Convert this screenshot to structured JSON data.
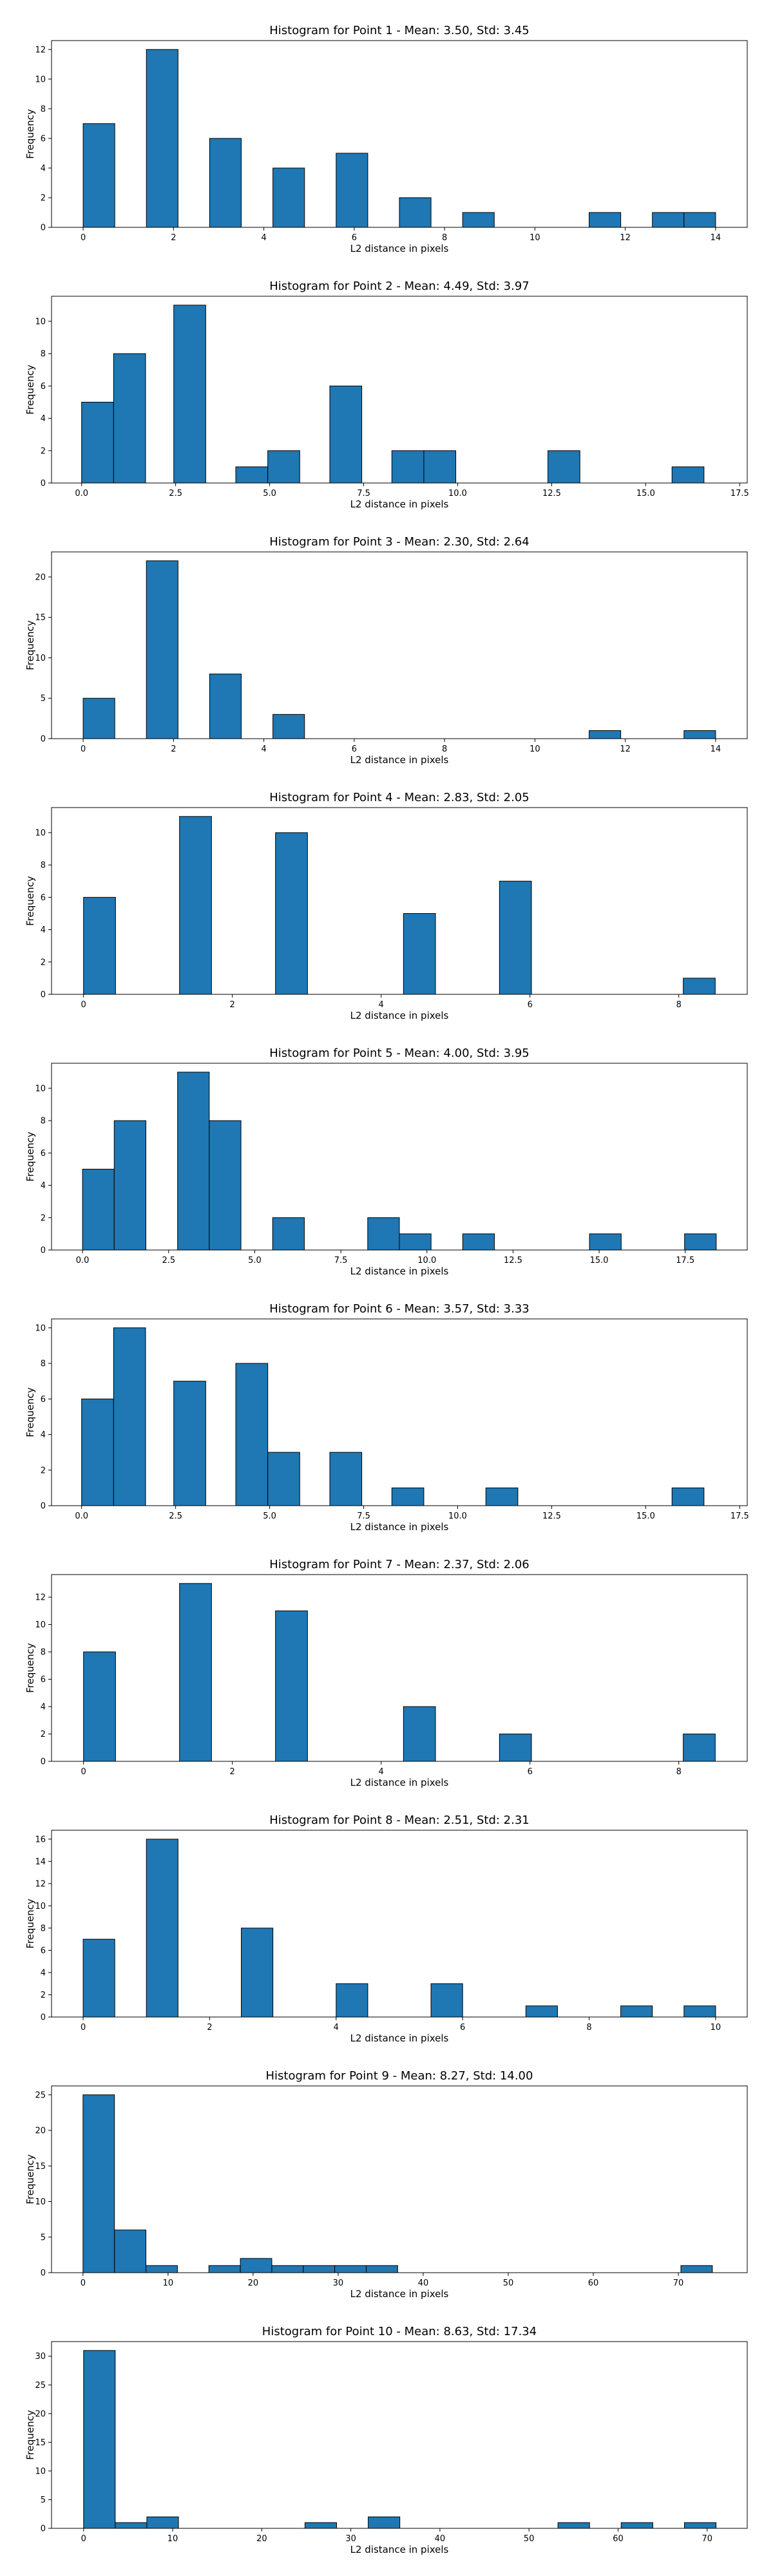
{
  "figure": {
    "bar_color": "#1f77b4",
    "edge_color": "#000000",
    "background": "#ffffff"
  },
  "chart_data": [
    {
      "type": "bar",
      "title": "Histogram for Point 1 - Mean: 3.50, Std: 3.45",
      "xlabel": "L2 distance in pixels",
      "ylabel": "Frequency",
      "xlim": [
        -0.7,
        14.7
      ],
      "ylim": [
        0,
        12.6
      ],
      "xticks": [
        0,
        2,
        4,
        6,
        8,
        10,
        12,
        14
      ],
      "yticks": [
        0,
        2,
        4,
        6,
        8,
        10,
        12
      ],
      "grid": false,
      "bins": [
        {
          "x0": 0.0,
          "x1": 0.7,
          "count": 7
        },
        {
          "x0": 1.4,
          "x1": 2.1,
          "count": 12
        },
        {
          "x0": 2.8,
          "x1": 3.5,
          "count": 6
        },
        {
          "x0": 4.2,
          "x1": 4.9,
          "count": 4
        },
        {
          "x0": 5.6,
          "x1": 6.3,
          "count": 5
        },
        {
          "x0": 7.0,
          "x1": 7.7,
          "count": 2
        },
        {
          "x0": 8.4,
          "x1": 9.1,
          "count": 1
        },
        {
          "x0": 11.2,
          "x1": 11.9,
          "count": 1
        },
        {
          "x0": 12.6,
          "x1": 13.3,
          "count": 1
        },
        {
          "x0": 13.3,
          "x1": 14.0,
          "count": 1
        }
      ]
    },
    {
      "type": "bar",
      "title": "Histogram for Point 2 - Mean: 4.49, Std: 3.97",
      "xlabel": "L2 distance in pixels",
      "ylabel": "Frequency",
      "xlim": [
        -0.8,
        17.7
      ],
      "ylim": [
        0,
        11.55
      ],
      "xticks": [
        "0.0",
        "2.5",
        "5.0",
        "7.5",
        "10.0",
        "12.5",
        "15.0",
        "17.5"
      ],
      "yticks": [
        0,
        2,
        4,
        6,
        8,
        10
      ],
      "grid": false,
      "bins": [
        {
          "x0": 0.0,
          "x1": 0.85,
          "count": 5
        },
        {
          "x0": 0.85,
          "x1": 1.7,
          "count": 8
        },
        {
          "x0": 2.45,
          "x1": 3.3,
          "count": 11
        },
        {
          "x0": 4.1,
          "x1": 4.95,
          "count": 1
        },
        {
          "x0": 4.95,
          "x1": 5.8,
          "count": 2
        },
        {
          "x0": 6.6,
          "x1": 7.45,
          "count": 6
        },
        {
          "x0": 8.25,
          "x1": 9.1,
          "count": 2
        },
        {
          "x0": 9.1,
          "x1": 9.95,
          "count": 2
        },
        {
          "x0": 12.4,
          "x1": 13.25,
          "count": 2
        },
        {
          "x0": 15.7,
          "x1": 16.55,
          "count": 1
        }
      ]
    },
    {
      "type": "bar",
      "title": "Histogram for Point 3 - Mean: 2.30, Std: 2.64",
      "xlabel": "L2 distance in pixels",
      "ylabel": "Frequency",
      "xlim": [
        -0.7,
        14.7
      ],
      "ylim": [
        0,
        23.1
      ],
      "xticks": [
        0,
        2,
        4,
        6,
        8,
        10,
        12,
        14
      ],
      "yticks": [
        0,
        5,
        10,
        15,
        20
      ],
      "grid": false,
      "bins": [
        {
          "x0": 0.0,
          "x1": 0.7,
          "count": 5
        },
        {
          "x0": 1.4,
          "x1": 2.1,
          "count": 22
        },
        {
          "x0": 2.8,
          "x1": 3.5,
          "count": 8
        },
        {
          "x0": 4.2,
          "x1": 4.9,
          "count": 3
        },
        {
          "x0": 11.2,
          "x1": 11.9,
          "count": 1
        },
        {
          "x0": 13.3,
          "x1": 14.0,
          "count": 1
        }
      ]
    },
    {
      "type": "bar",
      "title": "Histogram for Point 4 - Mean: 2.83, Std: 2.05",
      "xlabel": "L2 distance in pixels",
      "ylabel": "Frequency",
      "xlim": [
        -0.43,
        8.92
      ],
      "ylim": [
        0,
        11.55
      ],
      "xticks": [
        0,
        2,
        4,
        6,
        8
      ],
      "yticks": [
        0,
        2,
        4,
        6,
        8,
        10
      ],
      "grid": false,
      "bins": [
        {
          "x0": 0.0,
          "x1": 0.43,
          "count": 6
        },
        {
          "x0": 1.29,
          "x1": 1.72,
          "count": 11
        },
        {
          "x0": 2.58,
          "x1": 3.01,
          "count": 10
        },
        {
          "x0": 4.3,
          "x1": 4.73,
          "count": 5
        },
        {
          "x0": 5.59,
          "x1": 6.02,
          "count": 7
        },
        {
          "x0": 8.06,
          "x1": 8.49,
          "count": 1
        }
      ]
    },
    {
      "type": "bar",
      "title": "Histogram for Point 5 - Mean: 4.00, Std: 3.95",
      "xlabel": "L2 distance in pixels",
      "ylabel": "Frequency",
      "xlim": [
        -0.9,
        19.3
      ],
      "ylim": [
        0,
        11.55
      ],
      "xticks": [
        "0.0",
        "2.5",
        "5.0",
        "7.5",
        "10.0",
        "12.5",
        "15.0",
        "17.5"
      ],
      "yticks": [
        0,
        2,
        4,
        6,
        8,
        10
      ],
      "grid": false,
      "bins": [
        {
          "x0": 0.0,
          "x1": 0.92,
          "count": 5
        },
        {
          "x0": 0.92,
          "x1": 1.84,
          "count": 8
        },
        {
          "x0": 2.76,
          "x1": 3.68,
          "count": 11
        },
        {
          "x0": 3.68,
          "x1": 4.6,
          "count": 8
        },
        {
          "x0": 5.52,
          "x1": 6.44,
          "count": 2
        },
        {
          "x0": 8.28,
          "x1": 9.2,
          "count": 2
        },
        {
          "x0": 9.2,
          "x1": 10.12,
          "count": 1
        },
        {
          "x0": 11.04,
          "x1": 11.96,
          "count": 1
        },
        {
          "x0": 14.72,
          "x1": 15.64,
          "count": 1
        },
        {
          "x0": 17.48,
          "x1": 18.4,
          "count": 1
        }
      ]
    },
    {
      "type": "bar",
      "title": "Histogram for Point 6 - Mean: 3.57, Std: 3.33",
      "xlabel": "L2 distance in pixels",
      "ylabel": "Frequency",
      "xlim": [
        -0.8,
        17.7
      ],
      "ylim": [
        0,
        10.5
      ],
      "xticks": [
        "0.0",
        "2.5",
        "5.0",
        "7.5",
        "10.0",
        "12.5",
        "15.0",
        "17.5"
      ],
      "yticks": [
        0,
        2,
        4,
        6,
        8,
        10
      ],
      "grid": false,
      "bins": [
        {
          "x0": 0.0,
          "x1": 0.85,
          "count": 6
        },
        {
          "x0": 0.85,
          "x1": 1.7,
          "count": 10
        },
        {
          "x0": 2.45,
          "x1": 3.3,
          "count": 7
        },
        {
          "x0": 4.1,
          "x1": 4.95,
          "count": 8
        },
        {
          "x0": 4.95,
          "x1": 5.8,
          "count": 3
        },
        {
          "x0": 6.6,
          "x1": 7.45,
          "count": 3
        },
        {
          "x0": 8.25,
          "x1": 9.1,
          "count": 1
        },
        {
          "x0": 10.75,
          "x1": 11.6,
          "count": 1
        },
        {
          "x0": 15.7,
          "x1": 16.55,
          "count": 1
        }
      ]
    },
    {
      "type": "bar",
      "title": "Histogram for Point 7 - Mean: 2.37, Std: 2.06",
      "xlabel": "L2 distance in pixels",
      "ylabel": "Frequency",
      "xlim": [
        -0.43,
        8.92
      ],
      "ylim": [
        0,
        13.65
      ],
      "xticks": [
        0,
        2,
        4,
        6,
        8
      ],
      "yticks": [
        0,
        2,
        4,
        6,
        8,
        10,
        12
      ],
      "grid": false,
      "bins": [
        {
          "x0": 0.0,
          "x1": 0.43,
          "count": 8
        },
        {
          "x0": 1.29,
          "x1": 1.72,
          "count": 13
        },
        {
          "x0": 2.58,
          "x1": 3.01,
          "count": 11
        },
        {
          "x0": 4.3,
          "x1": 4.73,
          "count": 4
        },
        {
          "x0": 5.59,
          "x1": 6.02,
          "count": 2
        },
        {
          "x0": 8.06,
          "x1": 8.49,
          "count": 2
        }
      ]
    },
    {
      "type": "bar",
      "title": "Histogram for Point 8 - Mean: 2.51, Std: 2.31",
      "xlabel": "L2 distance in pixels",
      "ylabel": "Frequency",
      "xlim": [
        -0.5,
        10.5
      ],
      "ylim": [
        0,
        16.8
      ],
      "xticks": [
        0,
        2,
        4,
        6,
        8,
        10
      ],
      "yticks": [
        0,
        2,
        4,
        6,
        8,
        10,
        12,
        14,
        16
      ],
      "grid": false,
      "bins": [
        {
          "x0": 0.0,
          "x1": 0.5,
          "count": 7
        },
        {
          "x0": 1.0,
          "x1": 1.5,
          "count": 16
        },
        {
          "x0": 2.5,
          "x1": 3.0,
          "count": 8
        },
        {
          "x0": 4.0,
          "x1": 4.5,
          "count": 3
        },
        {
          "x0": 5.5,
          "x1": 6.0,
          "count": 3
        },
        {
          "x0": 7.0,
          "x1": 7.5,
          "count": 1
        },
        {
          "x0": 8.5,
          "x1": 9.0,
          "count": 1
        },
        {
          "x0": 9.5,
          "x1": 10.0,
          "count": 1
        }
      ]
    },
    {
      "type": "bar",
      "title": "Histogram for Point 9 - Mean: 8.27, Std: 14.00",
      "xlabel": "L2 distance in pixels",
      "ylabel": "Frequency",
      "xlim": [
        -3.7,
        78.1
      ],
      "ylim": [
        0,
        26.25
      ],
      "xticks": [
        0,
        10,
        20,
        30,
        40,
        50,
        60,
        70
      ],
      "yticks": [
        0,
        5,
        10,
        15,
        20,
        25
      ],
      "grid": false,
      "bins": [
        {
          "x0": 0.0,
          "x1": 3.7,
          "count": 25
        },
        {
          "x0": 3.7,
          "x1": 7.4,
          "count": 6
        },
        {
          "x0": 7.4,
          "x1": 11.1,
          "count": 1
        },
        {
          "x0": 14.8,
          "x1": 18.5,
          "count": 1
        },
        {
          "x0": 18.5,
          "x1": 22.2,
          "count": 2
        },
        {
          "x0": 22.2,
          "x1": 25.9,
          "count": 1
        },
        {
          "x0": 25.9,
          "x1": 29.6,
          "count": 1
        },
        {
          "x0": 29.6,
          "x1": 33.3,
          "count": 1
        },
        {
          "x0": 33.3,
          "x1": 37.0,
          "count": 1
        },
        {
          "x0": 70.3,
          "x1": 74.0,
          "count": 1
        }
      ]
    },
    {
      "type": "bar",
      "title": "Histogram for Point 10 - Mean: 8.63, Std: 17.34",
      "xlabel": "L2 distance in pixels",
      "ylabel": "Frequency",
      "xlim": [
        -3.6,
        74.5
      ],
      "ylim": [
        0,
        32.55
      ],
      "xticks": [
        0,
        10,
        20,
        30,
        40,
        50,
        60,
        70
      ],
      "yticks": [
        0,
        5,
        10,
        15,
        20,
        25,
        30
      ],
      "grid": false,
      "bins": [
        {
          "x0": 0.0,
          "x1": 3.55,
          "count": 31
        },
        {
          "x0": 3.55,
          "x1": 7.1,
          "count": 1
        },
        {
          "x0": 7.1,
          "x1": 10.65,
          "count": 2
        },
        {
          "x0": 24.85,
          "x1": 28.4,
          "count": 1
        },
        {
          "x0": 31.95,
          "x1": 35.5,
          "count": 2
        },
        {
          "x0": 53.25,
          "x1": 56.8,
          "count": 1
        },
        {
          "x0": 60.35,
          "x1": 63.9,
          "count": 1
        },
        {
          "x0": 67.45,
          "x1": 71.0,
          "count": 1
        }
      ]
    }
  ]
}
